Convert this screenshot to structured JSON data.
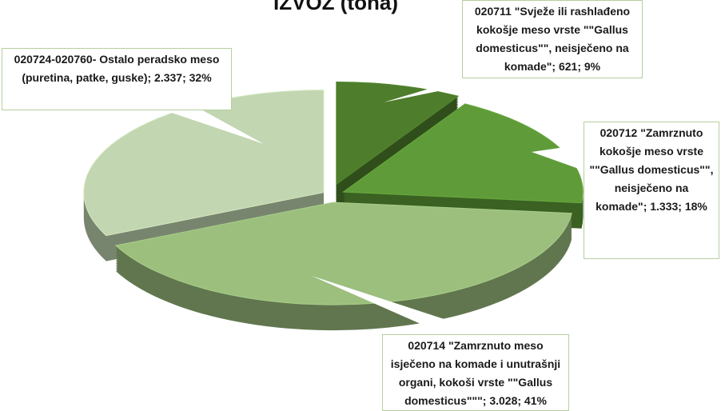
{
  "chart_data": {
    "type": "pie",
    "title": "IZVOZ (tona)",
    "values": [
      621,
      1333,
      3028,
      2337
    ],
    "value_labels": [
      "020711 \"Svježe ili rashlađeno kokošje meso vrste \"\"Gallus domesticus\"\", neisječeno na komade\"; 621; 9%",
      "020712 \"Zamrznuto kokošje meso vrste \"\"Gallus domesticus\"\", neisječeno na komade\"; 1.333; 18%",
      "020714 \"Zamrznuto meso isječeno na komade i unutrašnji organi, kokoši vrste \"\"Gallus domesticus\"\"\"; 3.028; 41%",
      "020724-020760- Ostalo peradsko meso (puretina, patke, guske); 2.337; 32%"
    ],
    "colors": [
      "#4e7d2c",
      "#5f9c39",
      "#9cbf7e",
      "#c2d6b1"
    ]
  }
}
